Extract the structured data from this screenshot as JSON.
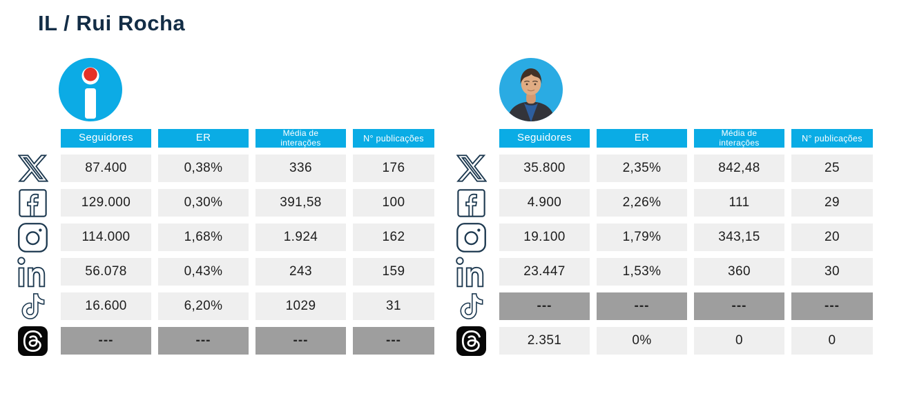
{
  "title": "IL / Rui Rocha",
  "colors": {
    "header_bg": "#0aace5",
    "header_text": "#ffffff",
    "cell_bg": "#efefef",
    "na_cell_bg": "#9e9e9e",
    "cell_text": "#1d1d1d",
    "title_color": "#132d46",
    "icon_ink": "#1d3950",
    "logo_blue": "#0cabe5",
    "logo_red": "#e63127"
  },
  "columns": [
    {
      "label": "Seguidores",
      "slug": "seguidores"
    },
    {
      "label": "ER",
      "slug": "er"
    },
    {
      "label": "Média de interações",
      "slug": "media-de-interacoes"
    },
    {
      "label": "N° publicações",
      "slug": "n-publicacoes"
    }
  ],
  "tables": [
    {
      "id": "il",
      "entity": "IL",
      "logo": "il-party-logo",
      "rows": [
        {
          "network": "x",
          "values": [
            "87.400",
            "0,38%",
            "336",
            "176"
          ],
          "na": false
        },
        {
          "network": "facebook",
          "values": [
            "129.000",
            "0,30%",
            "391,58",
            "100"
          ],
          "na": false
        },
        {
          "network": "instagram",
          "values": [
            "114.000",
            "1,68%",
            "1.924",
            "162"
          ],
          "na": false
        },
        {
          "network": "linkedin",
          "values": [
            "56.078",
            "0,43%",
            "243",
            "159"
          ],
          "na": false
        },
        {
          "network": "tiktok",
          "values": [
            "16.600",
            "6,20%",
            "1029",
            "31"
          ],
          "na": false
        },
        {
          "network": "threads",
          "values": [
            "---",
            "---",
            "---",
            "---"
          ],
          "na": true
        }
      ]
    },
    {
      "id": "rui-rocha",
      "entity": "Rui Rocha",
      "logo": "rui-rocha-photo",
      "rows": [
        {
          "network": "x",
          "values": [
            "35.800",
            "2,35%",
            "842,48",
            "25"
          ],
          "na": false
        },
        {
          "network": "facebook",
          "values": [
            "4.900",
            "2,26%",
            "111",
            "29"
          ],
          "na": false
        },
        {
          "network": "instagram",
          "values": [
            "19.100",
            "1,79%",
            "343,15",
            "20"
          ],
          "na": false
        },
        {
          "network": "linkedin",
          "values": [
            "23.447",
            "1,53%",
            "360",
            "30"
          ],
          "na": false
        },
        {
          "network": "tiktok",
          "values": [
            "---",
            "---",
            "---",
            "---"
          ],
          "na": true
        },
        {
          "network": "threads",
          "values": [
            "2.351",
            "0%",
            "0",
            "0"
          ],
          "na": false
        }
      ]
    }
  ]
}
